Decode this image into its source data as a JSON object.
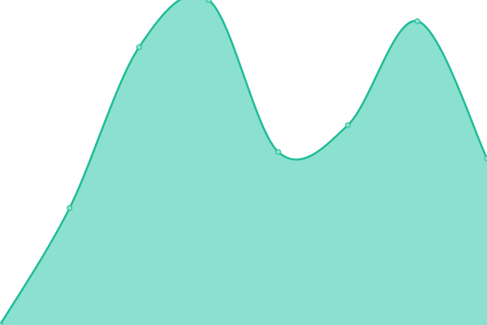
{
  "chart_data": {
    "type": "area",
    "x": [
      0,
      1,
      2,
      3,
      4,
      5,
      6,
      7
    ],
    "values": [
      0,
      144,
      342,
      400,
      213,
      246,
      374,
      205
    ],
    "ylim": [
      0,
      400
    ],
    "grid": false,
    "legend": "none",
    "axes_visible": false,
    "curve": "smooth",
    "colors": {
      "line": "#1fbc95",
      "fill": "#8be0d0",
      "point_fill": "#8be0d0"
    }
  }
}
